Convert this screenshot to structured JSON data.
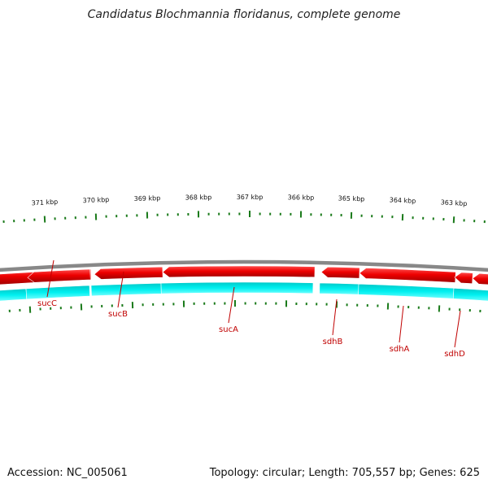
{
  "title": "Candidatus Blochmannia floridanus, complete genome",
  "footer": {
    "accession": "Accession: NC_005061",
    "summary": "Topology: circular; Length: 705,557 bp; Genes: 625"
  },
  "colors": {
    "forward_gene": "#e00000",
    "reverse_gene": "#00e5e5",
    "backbone": "#888888",
    "ticks": "#1a7a1a",
    "label": "#c00000"
  },
  "kbp_labels": [
    "371 kbp",
    "370 kbp",
    "369 kbp",
    "368 kbp",
    "367 kbp",
    "366 kbp",
    "365 kbp",
    "364 kbp",
    "363 kbp"
  ],
  "genes": [
    {
      "name": "sucC",
      "strand": "reverse"
    },
    {
      "name": "sucB",
      "strand": "reverse"
    },
    {
      "name": "sucA",
      "strand": "reverse"
    },
    {
      "name": "sdhB",
      "strand": "reverse"
    },
    {
      "name": "sdhA",
      "strand": "reverse"
    },
    {
      "name": "sdhD",
      "strand": "reverse"
    }
  ]
}
